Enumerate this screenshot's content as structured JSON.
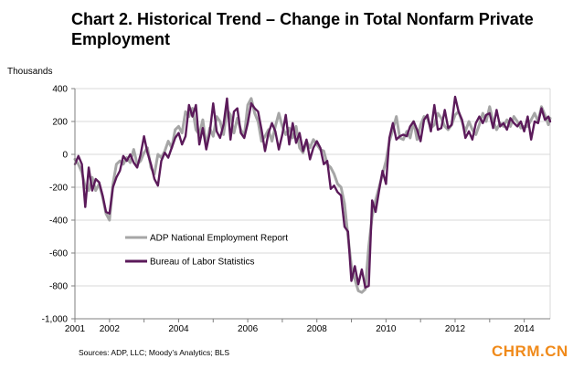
{
  "title": "Chart 2. Historical Trend – Change in Total Nonfarm Private Employment",
  "source": "Sources: ADP, LLC; Moody’s Analytics; BLS",
  "brand": "CHRM.CN",
  "chart_data": {
    "type": "line",
    "title": "Chart 2. Historical Trend – Change in Total Nonfarm Private Employment",
    "ylabel": "Thousands",
    "xlabel": "",
    "ylim": [
      -1000,
      400
    ],
    "xlim": [
      2001.0,
      2014.75
    ],
    "yticks": [
      400,
      200,
      0,
      -200,
      -400,
      -600,
      -800,
      -1000
    ],
    "ytick_labels": [
      "400",
      "200",
      "0",
      "-200",
      "-400",
      "-600",
      "-800",
      "-1,000"
    ],
    "xticks": [
      2001,
      2002,
      2004,
      2006,
      2008,
      2010,
      2012,
      2014
    ],
    "xtick_labels": [
      "2001",
      "2002",
      "2004",
      "2006",
      "2008",
      "2010",
      "2012",
      "2014"
    ],
    "grid": true,
    "legend": "inside left",
    "series": [
      {
        "name": "ADP National Employment Report",
        "color": "#a6a6a6",
        "points": [
          [
            2001.0,
            -30
          ],
          [
            2001.1,
            -60
          ],
          [
            2001.2,
            -110
          ],
          [
            2001.3,
            -200
          ],
          [
            2001.4,
            -220
          ],
          [
            2001.5,
            -140
          ],
          [
            2001.6,
            -220
          ],
          [
            2001.7,
            -180
          ],
          [
            2001.8,
            -260
          ],
          [
            2001.9,
            -360
          ],
          [
            2002.0,
            -400
          ],
          [
            2002.1,
            -180
          ],
          [
            2002.2,
            -60
          ],
          [
            2002.3,
            -40
          ],
          [
            2002.4,
            -60
          ],
          [
            2002.5,
            -20
          ],
          [
            2002.6,
            -50
          ],
          [
            2002.7,
            30
          ],
          [
            2002.8,
            -60
          ],
          [
            2002.9,
            -40
          ],
          [
            2003.0,
            10
          ],
          [
            2003.1,
            40
          ],
          [
            2003.2,
            -80
          ],
          [
            2003.3,
            -120
          ],
          [
            2003.4,
            0
          ],
          [
            2003.5,
            -20
          ],
          [
            2003.6,
            20
          ],
          [
            2003.7,
            80
          ],
          [
            2003.8,
            40
          ],
          [
            2003.9,
            150
          ],
          [
            2004.0,
            170
          ],
          [
            2004.1,
            130
          ],
          [
            2004.2,
            260
          ],
          [
            2004.3,
            230
          ],
          [
            2004.4,
            280
          ],
          [
            2004.5,
            150
          ],
          [
            2004.6,
            120
          ],
          [
            2004.7,
            210
          ],
          [
            2004.8,
            50
          ],
          [
            2004.9,
            160
          ],
          [
            2005.0,
            110
          ],
          [
            2005.1,
            230
          ],
          [
            2005.2,
            200
          ],
          [
            2005.3,
            120
          ],
          [
            2005.4,
            270
          ],
          [
            2005.5,
            240
          ],
          [
            2005.6,
            130
          ],
          [
            2005.7,
            220
          ],
          [
            2005.8,
            150
          ],
          [
            2005.9,
            110
          ],
          [
            2006.0,
            300
          ],
          [
            2006.1,
            340
          ],
          [
            2006.2,
            250
          ],
          [
            2006.3,
            200
          ],
          [
            2006.4,
            80
          ],
          [
            2006.5,
            110
          ],
          [
            2006.6,
            150
          ],
          [
            2006.7,
            80
          ],
          [
            2006.8,
            170
          ],
          [
            2006.9,
            250
          ],
          [
            2007.0,
            170
          ],
          [
            2007.1,
            120
          ],
          [
            2007.2,
            160
          ],
          [
            2007.3,
            100
          ],
          [
            2007.4,
            170
          ],
          [
            2007.5,
            40
          ],
          [
            2007.6,
            10
          ],
          [
            2007.7,
            80
          ],
          [
            2007.8,
            40
          ],
          [
            2007.9,
            90
          ],
          [
            2008.0,
            60
          ],
          [
            2008.1,
            30
          ],
          [
            2008.2,
            20
          ],
          [
            2008.3,
            -60
          ],
          [
            2008.4,
            -80
          ],
          [
            2008.5,
            -120
          ],
          [
            2008.6,
            -180
          ],
          [
            2008.7,
            -200
          ],
          [
            2008.8,
            -300
          ],
          [
            2008.9,
            -500
          ],
          [
            2009.0,
            -680
          ],
          [
            2009.1,
            -760
          ],
          [
            2009.2,
            -830
          ],
          [
            2009.3,
            -840
          ],
          [
            2009.4,
            -820
          ],
          [
            2009.5,
            -560
          ],
          [
            2009.6,
            -380
          ],
          [
            2009.7,
            -280
          ],
          [
            2009.8,
            -200
          ],
          [
            2009.9,
            -120
          ],
          [
            2010.0,
            -40
          ],
          [
            2010.1,
            80
          ],
          [
            2010.2,
            150
          ],
          [
            2010.3,
            230
          ],
          [
            2010.4,
            100
          ],
          [
            2010.5,
            90
          ],
          [
            2010.6,
            140
          ],
          [
            2010.7,
            100
          ],
          [
            2010.8,
            200
          ],
          [
            2010.9,
            90
          ],
          [
            2011.0,
            180
          ],
          [
            2011.1,
            230
          ],
          [
            2011.2,
            220
          ],
          [
            2011.3,
            160
          ],
          [
            2011.4,
            180
          ],
          [
            2011.5,
            250
          ],
          [
            2011.6,
            220
          ],
          [
            2011.7,
            170
          ],
          [
            2011.8,
            150
          ],
          [
            2011.9,
            180
          ],
          [
            2012.0,
            240
          ],
          [
            2012.1,
            260
          ],
          [
            2012.2,
            200
          ],
          [
            2012.3,
            140
          ],
          [
            2012.4,
            200
          ],
          [
            2012.5,
            150
          ],
          [
            2012.6,
            120
          ],
          [
            2012.7,
            180
          ],
          [
            2012.8,
            250
          ],
          [
            2012.9,
            200
          ],
          [
            2013.0,
            290
          ],
          [
            2013.1,
            200
          ],
          [
            2013.2,
            150
          ],
          [
            2013.3,
            190
          ],
          [
            2013.4,
            170
          ],
          [
            2013.5,
            210
          ],
          [
            2013.6,
            170
          ],
          [
            2013.7,
            230
          ],
          [
            2013.8,
            200
          ],
          [
            2013.9,
            160
          ],
          [
            2014.0,
            170
          ],
          [
            2014.1,
            170
          ],
          [
            2014.2,
            210
          ],
          [
            2014.3,
            250
          ],
          [
            2014.4,
            200
          ],
          [
            2014.5,
            290
          ],
          [
            2014.6,
            240
          ],
          [
            2014.7,
            180
          ],
          [
            2014.75,
            220
          ]
        ]
      },
      {
        "name": "Bureau of Labor Statistics",
        "color": "#5b1a5a",
        "points": [
          [
            2001.0,
            -60
          ],
          [
            2001.1,
            -10
          ],
          [
            2001.2,
            -60
          ],
          [
            2001.3,
            -320
          ],
          [
            2001.4,
            -80
          ],
          [
            2001.5,
            -220
          ],
          [
            2001.6,
            -150
          ],
          [
            2001.7,
            -170
          ],
          [
            2001.8,
            -250
          ],
          [
            2001.9,
            -350
          ],
          [
            2002.0,
            -360
          ],
          [
            2002.1,
            -200
          ],
          [
            2002.2,
            -140
          ],
          [
            2002.3,
            -100
          ],
          [
            2002.4,
            -10
          ],
          [
            2002.5,
            -40
          ],
          [
            2002.6,
            0
          ],
          [
            2002.7,
            -50
          ],
          [
            2002.8,
            -80
          ],
          [
            2002.9,
            0
          ],
          [
            2003.0,
            110
          ],
          [
            2003.1,
            10
          ],
          [
            2003.2,
            -60
          ],
          [
            2003.3,
            -150
          ],
          [
            2003.4,
            -190
          ],
          [
            2003.5,
            -40
          ],
          [
            2003.6,
            10
          ],
          [
            2003.7,
            -20
          ],
          [
            2003.8,
            40
          ],
          [
            2003.9,
            100
          ],
          [
            2004.0,
            130
          ],
          [
            2004.1,
            60
          ],
          [
            2004.2,
            110
          ],
          [
            2004.3,
            300
          ],
          [
            2004.4,
            230
          ],
          [
            2004.5,
            300
          ],
          [
            2004.6,
            60
          ],
          [
            2004.7,
            160
          ],
          [
            2004.8,
            30
          ],
          [
            2004.9,
            130
          ],
          [
            2005.0,
            310
          ],
          [
            2005.1,
            140
          ],
          [
            2005.2,
            100
          ],
          [
            2005.3,
            180
          ],
          [
            2005.4,
            340
          ],
          [
            2005.5,
            90
          ],
          [
            2005.6,
            260
          ],
          [
            2005.7,
            280
          ],
          [
            2005.8,
            130
          ],
          [
            2005.9,
            100
          ],
          [
            2006.0,
            190
          ],
          [
            2006.1,
            310
          ],
          [
            2006.2,
            280
          ],
          [
            2006.3,
            260
          ],
          [
            2006.4,
            150
          ],
          [
            2006.5,
            20
          ],
          [
            2006.6,
            130
          ],
          [
            2006.7,
            190
          ],
          [
            2006.8,
            140
          ],
          [
            2006.9,
            30
          ],
          [
            2007.0,
            120
          ],
          [
            2007.1,
            240
          ],
          [
            2007.2,
            60
          ],
          [
            2007.3,
            190
          ],
          [
            2007.4,
            70
          ],
          [
            2007.5,
            130
          ],
          [
            2007.6,
            20
          ],
          [
            2007.7,
            90
          ],
          [
            2007.8,
            -30
          ],
          [
            2007.9,
            40
          ],
          [
            2008.0,
            80
          ],
          [
            2008.1,
            40
          ],
          [
            2008.2,
            -60
          ],
          [
            2008.3,
            -40
          ],
          [
            2008.4,
            -210
          ],
          [
            2008.5,
            -190
          ],
          [
            2008.6,
            -230
          ],
          [
            2008.7,
            -250
          ],
          [
            2008.8,
            -440
          ],
          [
            2008.9,
            -470
          ],
          [
            2009.0,
            -770
          ],
          [
            2009.1,
            -680
          ],
          [
            2009.2,
            -790
          ],
          [
            2009.3,
            -700
          ],
          [
            2009.4,
            -810
          ],
          [
            2009.5,
            -800
          ],
          [
            2009.6,
            -280
          ],
          [
            2009.7,
            -350
          ],
          [
            2009.8,
            -220
          ],
          [
            2009.9,
            -100
          ],
          [
            2010.0,
            -180
          ],
          [
            2010.1,
            100
          ],
          [
            2010.2,
            190
          ],
          [
            2010.3,
            90
          ],
          [
            2010.4,
            110
          ],
          [
            2010.5,
            120
          ],
          [
            2010.6,
            110
          ],
          [
            2010.7,
            170
          ],
          [
            2010.8,
            200
          ],
          [
            2010.9,
            150
          ],
          [
            2011.0,
            80
          ],
          [
            2011.1,
            210
          ],
          [
            2011.2,
            240
          ],
          [
            2011.3,
            140
          ],
          [
            2011.4,
            300
          ],
          [
            2011.5,
            150
          ],
          [
            2011.6,
            160
          ],
          [
            2011.7,
            270
          ],
          [
            2011.8,
            160
          ],
          [
            2011.9,
            180
          ],
          [
            2012.0,
            350
          ],
          [
            2012.1,
            260
          ],
          [
            2012.2,
            210
          ],
          [
            2012.3,
            100
          ],
          [
            2012.4,
            140
          ],
          [
            2012.5,
            90
          ],
          [
            2012.6,
            190
          ],
          [
            2012.7,
            230
          ],
          [
            2012.8,
            190
          ],
          [
            2012.9,
            240
          ],
          [
            2013.0,
            250
          ],
          [
            2013.1,
            160
          ],
          [
            2013.2,
            270
          ],
          [
            2013.3,
            170
          ],
          [
            2013.4,
            190
          ],
          [
            2013.5,
            150
          ],
          [
            2013.6,
            220
          ],
          [
            2013.7,
            190
          ],
          [
            2013.8,
            170
          ],
          [
            2013.9,
            200
          ],
          [
            2014.0,
            140
          ],
          [
            2014.1,
            230
          ],
          [
            2014.2,
            90
          ],
          [
            2014.3,
            200
          ],
          [
            2014.4,
            190
          ],
          [
            2014.5,
            280
          ],
          [
            2014.6,
            210
          ],
          [
            2014.7,
            230
          ],
          [
            2014.75,
            200
          ]
        ]
      }
    ]
  }
}
